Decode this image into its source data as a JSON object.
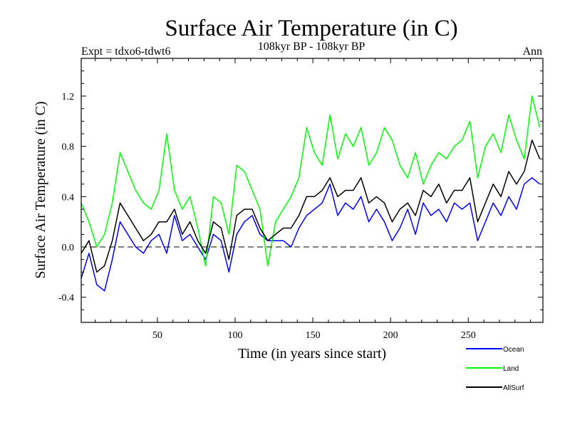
{
  "chart_data": {
    "type": "line",
    "title": "Surface Air Temperature (in C)",
    "subtitle_left": "Expt = tdxo6-tdwt6",
    "subtitle_center": "108kyr BP - 108kyr BP",
    "subtitle_right": "Ann",
    "xlabel": "Time (in years since start)",
    "ylabel": "Surface Air Temperature (in C)",
    "xlim": [
      1,
      298
    ],
    "ylim": [
      -0.6,
      1.5
    ],
    "xticks": [
      50,
      100,
      150,
      200,
      250
    ],
    "xtick_labels": [
      "50",
      "100",
      "150",
      "200",
      "250"
    ],
    "yticks": [
      -0.4,
      0.0,
      0.4,
      0.8,
      1.2
    ],
    "ytick_labels": [
      "-0.4",
      "0.0",
      "0.4",
      "0.8",
      "1.2"
    ],
    "zero_line": "dashed",
    "grid": false,
    "legend_placement": "bottom-right, below plot",
    "x": [
      1,
      6,
      11,
      16,
      21,
      26,
      31,
      36,
      41,
      46,
      51,
      56,
      61,
      66,
      71,
      76,
      81,
      86,
      91,
      96,
      101,
      106,
      111,
      116,
      121,
      126,
      131,
      136,
      141,
      146,
      151,
      156,
      161,
      166,
      171,
      176,
      181,
      186,
      191,
      196,
      201,
      206,
      211,
      216,
      221,
      226,
      231,
      236,
      241,
      246,
      251,
      256,
      261,
      266,
      271,
      276,
      281,
      286,
      291,
      296
    ],
    "series": [
      {
        "name": "Ocean",
        "color": "#0000ff",
        "values": [
          -0.25,
          -0.05,
          -0.3,
          -0.35,
          -0.1,
          0.2,
          0.1,
          0.0,
          -0.05,
          0.05,
          0.1,
          -0.05,
          0.25,
          0.05,
          0.1,
          0.0,
          -0.1,
          0.1,
          0.05,
          -0.2,
          0.1,
          0.2,
          0.25,
          0.1,
          0.05,
          0.05,
          0.05,
          0.0,
          0.15,
          0.25,
          0.3,
          0.35,
          0.5,
          0.25,
          0.35,
          0.3,
          0.4,
          0.2,
          0.3,
          0.2,
          0.05,
          0.15,
          0.3,
          0.1,
          0.35,
          0.25,
          0.3,
          0.2,
          0.35,
          0.3,
          0.35,
          0.05,
          0.2,
          0.35,
          0.25,
          0.4,
          0.3,
          0.5,
          0.55,
          0.5
        ]
      },
      {
        "name": "Land",
        "color": "#00ff00",
        "values": [
          0.35,
          0.2,
          0.0,
          0.1,
          0.35,
          0.75,
          0.6,
          0.45,
          0.35,
          0.3,
          0.45,
          0.9,
          0.45,
          0.3,
          0.4,
          0.15,
          -0.15,
          0.4,
          0.35,
          0.1,
          0.65,
          0.6,
          0.45,
          0.3,
          -0.15,
          0.2,
          0.3,
          0.4,
          0.55,
          0.95,
          0.75,
          0.65,
          1.05,
          0.7,
          0.9,
          0.8,
          0.95,
          0.65,
          0.75,
          0.95,
          0.85,
          0.65,
          0.55,
          0.75,
          0.5,
          0.65,
          0.75,
          0.7,
          0.8,
          0.85,
          1.0,
          0.55,
          0.8,
          0.9,
          0.75,
          1.05,
          0.85,
          0.7,
          1.2,
          0.95
        ]
      },
      {
        "name": "AllSurf",
        "color": "#000000",
        "values": [
          -0.05,
          0.05,
          -0.2,
          -0.15,
          0.05,
          0.35,
          0.25,
          0.15,
          0.05,
          0.1,
          0.2,
          0.2,
          0.3,
          0.1,
          0.2,
          0.05,
          -0.05,
          0.2,
          0.15,
          -0.1,
          0.25,
          0.3,
          0.3,
          0.15,
          0.05,
          0.1,
          0.15,
          0.15,
          0.25,
          0.4,
          0.4,
          0.45,
          0.55,
          0.4,
          0.45,
          0.45,
          0.55,
          0.35,
          0.4,
          0.35,
          0.2,
          0.3,
          0.35,
          0.25,
          0.45,
          0.4,
          0.5,
          0.35,
          0.45,
          0.45,
          0.55,
          0.2,
          0.35,
          0.5,
          0.4,
          0.6,
          0.5,
          0.6,
          0.85,
          0.7
        ]
      }
    ]
  }
}
